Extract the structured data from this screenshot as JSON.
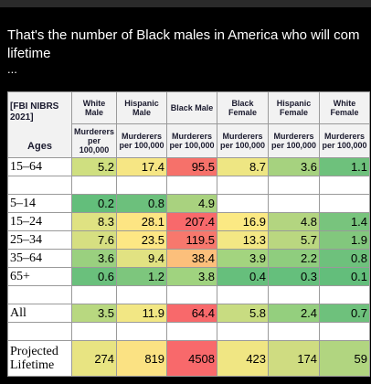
{
  "post": {
    "line1": "That's the number of Black males in America who will com",
    "line2": "lifetime",
    "more": "..."
  },
  "table": {
    "source_label": "[FBI NIBRS 2021]",
    "age_header": "Ages",
    "columns": [
      "White Male",
      "Hispanic Male",
      "Black Male",
      "Black Female",
      "Hispanic Female",
      "White Female"
    ],
    "units": [
      "Murderers per 100,000",
      "Murderers per 100,000",
      "Murderers per 100,000",
      "Murderers per 100,000",
      "Murderers per 100,000",
      "Murderers per 100,000"
    ],
    "rows": [
      {
        "label": "15–64",
        "values": [
          5.2,
          17.4,
          95.5,
          8.7,
          3.6,
          1.1
        ],
        "colors": [
          "#cfdf80",
          "#f6e684",
          "#f6716a",
          "#eee683",
          "#a6d27f",
          "#6ec17c"
        ]
      },
      {
        "label": "5–14",
        "values": [
          0.2,
          0.8,
          4.9,
          null,
          null,
          null
        ],
        "colors": [
          "#63be7b",
          "#6cc07c",
          "#a9d27f",
          "#ffffff",
          "#ffffff",
          "#ffffff"
        ]
      },
      {
        "label": "15–24",
        "values": [
          8.3,
          28.1,
          207.4,
          16.9,
          4.8,
          1.4
        ],
        "colors": [
          "#dfe282",
          "#fde583",
          "#f8696b",
          "#fbe983",
          "#b3d580",
          "#78c47d"
        ]
      },
      {
        "label": "25–34",
        "values": [
          7.6,
          23.5,
          119.5,
          13.3,
          5.7,
          1.9
        ],
        "colors": [
          "#d6df81",
          "#fde784",
          "#f7786d",
          "#f3e784",
          "#bad780",
          "#82c77d"
        ]
      },
      {
        "label": "35–64",
        "values": [
          3.6,
          9.4,
          38.4,
          3.9,
          2.2,
          0.8
        ],
        "colors": [
          "#9ad07f",
          "#e1e282",
          "#fcbf7b",
          "#a3d47f",
          "#8fcd7e",
          "#6ec17c"
        ]
      },
      {
        "label": "65+",
        "values": [
          0.6,
          1.2,
          3.8,
          0.4,
          0.3,
          0.1
        ],
        "colors": [
          "#6ac07c",
          "#7dc67d",
          "#a0d37f",
          "#66bf7c",
          "#65bf7c",
          "#63be7b"
        ]
      },
      {
        "label": "All",
        "values": [
          3.5,
          11.9,
          64.4,
          5.8,
          2.4,
          0.7
        ],
        "colors": [
          "#b8d880",
          "#f2e784",
          "#f8696b",
          "#c8dc81",
          "#94cf7e",
          "#6ec17c"
        ]
      },
      {
        "label": "Projected Lifetime",
        "values": [
          274,
          819,
          4508,
          423,
          174,
          59
        ],
        "colors": [
          "#e8e482",
          "#fbe283",
          "#f8696b",
          "#f0e683",
          "#cfdc81",
          "#b1d580"
        ]
      }
    ]
  }
}
